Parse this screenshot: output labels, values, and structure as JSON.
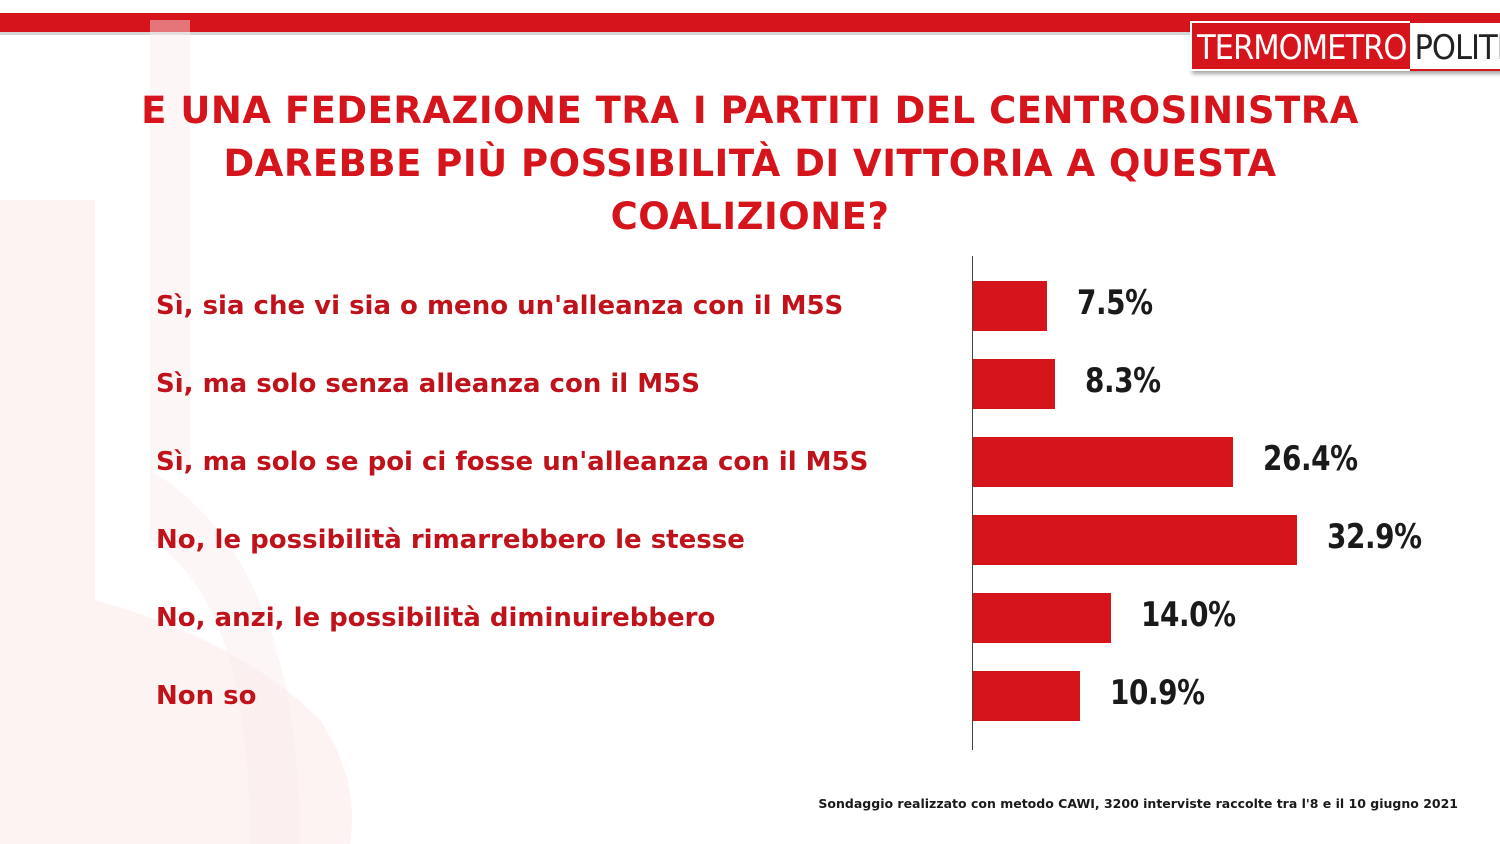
{
  "brand": {
    "part1": "TERMOMETRO",
    "part2": "POLITICO",
    "accent_color": "#d6141c"
  },
  "title_lines": [
    "E UNA FEDERAZIONE TRA I PARTITI DEL CENTROSINISTRA",
    "DAREBBE PIÙ POSSIBILITÀ DI VITTORIA A QUESTA",
    "COALIZIONE?"
  ],
  "chart_data": {
    "type": "bar",
    "orientation": "horizontal",
    "title": "E UNA FEDERAZIONE TRA I PARTITI DEL CENTROSINISTRA DAREBBE PIÙ POSSIBILITÀ DI VITTORIA A QUESTA COALIZIONE?",
    "categories": [
      "Sì, sia che vi sia o meno un'alleanza con il M5S",
      "Sì, ma solo senza alleanza con il M5S",
      "Sì, ma solo se poi ci fosse un'alleanza con il M5S",
      "No, le possibilità rimarrebbero le stesse",
      "No, anzi, le possibilità diminuirebbero",
      "Non so"
    ],
    "values": [
      7.5,
      8.3,
      26.4,
      32.9,
      14.0,
      10.9
    ],
    "value_labels": [
      "7.5%",
      "8.3%",
      "26.4%",
      "32.9%",
      "14.0%",
      "10.9%"
    ],
    "unit": "%",
    "bar_color": "#d6141c",
    "label_color": "#c0121a",
    "grid": false,
    "legend": false
  },
  "footnote": "Sondaggio realizzato con metodo CAWI, 3200 interviste raccolte tra l'8  e il 10 giugno 2021"
}
